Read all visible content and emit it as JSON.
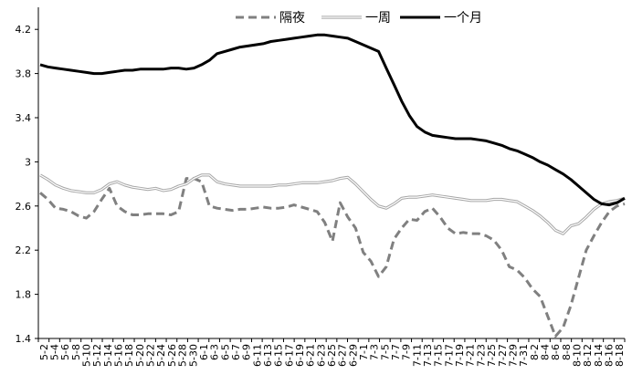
{
  "chart_data": {
    "type": "line",
    "title": "",
    "xlabel": "",
    "ylabel": "",
    "ylim": [
      1.4,
      4.4
    ],
    "yticks": [
      1.4,
      1.8,
      2.2,
      2.6,
      3,
      3.4,
      3.8,
      4.2
    ],
    "grid": false,
    "legend_position": "top",
    "x_tick_labels": [
      "5-2",
      "5-4",
      "5-6",
      "5-8",
      "5-10",
      "5-12",
      "5-14",
      "5-16",
      "5-18",
      "5-20",
      "5-22",
      "5-24",
      "5-26",
      "5-28",
      "5-30",
      "6-1",
      "6-3",
      "6-5",
      "6-7",
      "6-9",
      "6-11",
      "6-13",
      "6-15",
      "6-17",
      "6-19",
      "6-21",
      "6-23",
      "6-25",
      "6-27",
      "6-29",
      "7-1",
      "7-3",
      "7-5",
      "7-7",
      "7-9",
      "7-11",
      "7-13",
      "7-15",
      "7-17",
      "7-19",
      "7-21",
      "7-23",
      "7-25",
      "7-27",
      "7-29",
      "7-31",
      "8-2",
      "8-4",
      "8-6",
      "8-8",
      "8-10",
      "8-12",
      "8-14",
      "8-16",
      "8-18"
    ],
    "x_tick_labels_shown": [
      "5-2",
      "5-4",
      "5-6",
      "5-8",
      "5-10",
      "5-12",
      "5-14",
      "5-16",
      "5-18",
      "5-20",
      "5-22",
      "5-24",
      "5-26",
      "5-28",
      "5-30",
      "6-1",
      "6-3",
      "6-5",
      "6-7",
      "6-9",
      "6-11",
      "6-13",
      "6-15",
      "6-17",
      "6-19",
      "6-21",
      "6-23",
      "6-25",
      "6-27",
      "6-29",
      "7-1",
      "7-3",
      "7-5",
      "7-7",
      "7-9",
      "7-11",
      "7-13",
      "7-15",
      "7-17",
      "7-19",
      "7-21",
      "7-23",
      "7-25",
      "7-27",
      "7-29",
      "7-31",
      "8-2",
      "8-4",
      "8-6",
      "8-8",
      "8-10",
      "8-12",
      "8-14",
      "8-16",
      "8-18"
    ],
    "series": [
      {
        "name": "隔夜",
        "color": "#808080",
        "dash": "dashed",
        "values": [
          2.72,
          2.66,
          2.58,
          2.57,
          2.55,
          2.51,
          2.49,
          2.55,
          2.66,
          2.76,
          2.6,
          2.55,
          2.52,
          2.52,
          2.53,
          2.53,
          2.53,
          2.52,
          2.55,
          2.85,
          2.85,
          2.82,
          2.6,
          2.58,
          2.57,
          2.56,
          2.57,
          2.57,
          2.58,
          2.59,
          2.58,
          2.58,
          2.59,
          2.61,
          2.59,
          2.57,
          2.55,
          2.45,
          2.28,
          2.63,
          2.5,
          2.4,
          2.18,
          2.1,
          1.96,
          2.05,
          2.3,
          2.4,
          2.48,
          2.47,
          2.55,
          2.58,
          2.5,
          2.4,
          2.35,
          2.36,
          2.35,
          2.35,
          2.33,
          2.29,
          2.2,
          2.05,
          2.02,
          1.95,
          1.85,
          1.78,
          1.6,
          1.42,
          1.5,
          1.7,
          1.95,
          2.2,
          2.33,
          2.45,
          2.55,
          2.6,
          2.62
        ]
      },
      {
        "name": "一周",
        "color": "#a6a6a6",
        "dash": "double",
        "values": [
          2.88,
          2.84,
          2.79,
          2.76,
          2.74,
          2.73,
          2.72,
          2.72,
          2.75,
          2.8,
          2.82,
          2.79,
          2.77,
          2.76,
          2.75,
          2.76,
          2.74,
          2.75,
          2.78,
          2.8,
          2.85,
          2.88,
          2.88,
          2.82,
          2.8,
          2.79,
          2.78,
          2.78,
          2.78,
          2.78,
          2.78,
          2.79,
          2.79,
          2.8,
          2.81,
          2.81,
          2.81,
          2.82,
          2.83,
          2.85,
          2.86,
          2.8,
          2.73,
          2.66,
          2.6,
          2.58,
          2.62,
          2.67,
          2.68,
          2.68,
          2.69,
          2.7,
          2.69,
          2.68,
          2.67,
          2.66,
          2.65,
          2.65,
          2.65,
          2.66,
          2.66,
          2.65,
          2.64,
          2.6,
          2.56,
          2.51,
          2.45,
          2.38,
          2.35,
          2.42,
          2.44,
          2.5,
          2.57,
          2.62,
          2.64,
          2.65,
          2.67
        ]
      },
      {
        "name": "一个月",
        "color": "#000000",
        "dash": "solid",
        "values": [
          3.88,
          3.86,
          3.85,
          3.84,
          3.83,
          3.82,
          3.81,
          3.8,
          3.8,
          3.81,
          3.82,
          3.83,
          3.83,
          3.84,
          3.84,
          3.84,
          3.84,
          3.85,
          3.85,
          3.84,
          3.85,
          3.88,
          3.92,
          3.98,
          4.0,
          4.02,
          4.04,
          4.05,
          4.06,
          4.07,
          4.09,
          4.1,
          4.11,
          4.12,
          4.13,
          4.14,
          4.15,
          4.15,
          4.14,
          4.13,
          4.12,
          4.09,
          4.06,
          4.03,
          4.0,
          3.85,
          3.7,
          3.55,
          3.42,
          3.32,
          3.27,
          3.24,
          3.23,
          3.22,
          3.21,
          3.21,
          3.21,
          3.2,
          3.19,
          3.17,
          3.15,
          3.12,
          3.1,
          3.07,
          3.04,
          3.0,
          2.97,
          2.93,
          2.89,
          2.84,
          2.78,
          2.72,
          2.66,
          2.62,
          2.61,
          2.63,
          2.67
        ]
      }
    ]
  }
}
